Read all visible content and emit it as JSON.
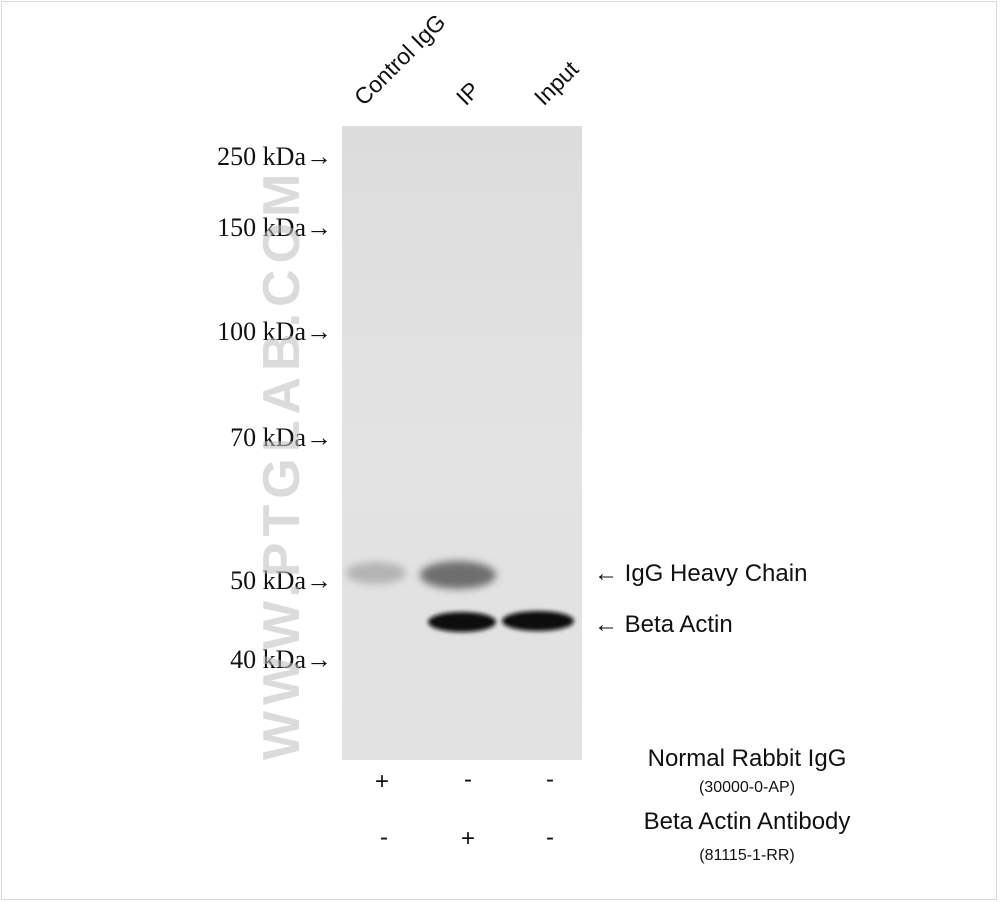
{
  "lanes": [
    "Control IgG",
    "IP",
    "Input"
  ],
  "markers": [
    "250 kDa→",
    "150 kDa→",
    "100 kDa→",
    "70 kDa→",
    "50 kDa→",
    "40 kDa→"
  ],
  "bands": {
    "heavy_chain": "← IgG Heavy Chain",
    "beta_actin": "← Beta Actin"
  },
  "reagents": [
    {
      "name": "Normal Rabbit IgG",
      "catalog": "(30000-0-AP)",
      "signs": [
        "+",
        "-",
        "-"
      ]
    },
    {
      "name": "Beta Actin Antibody",
      "catalog": "(81115-1-RR)",
      "signs": [
        "-",
        "+",
        "-"
      ]
    }
  ],
  "watermark": "WWW.PTGLAB.COM",
  "colors": {
    "gel_background": "#e2e2e2",
    "band": "#0a0a0a"
  }
}
